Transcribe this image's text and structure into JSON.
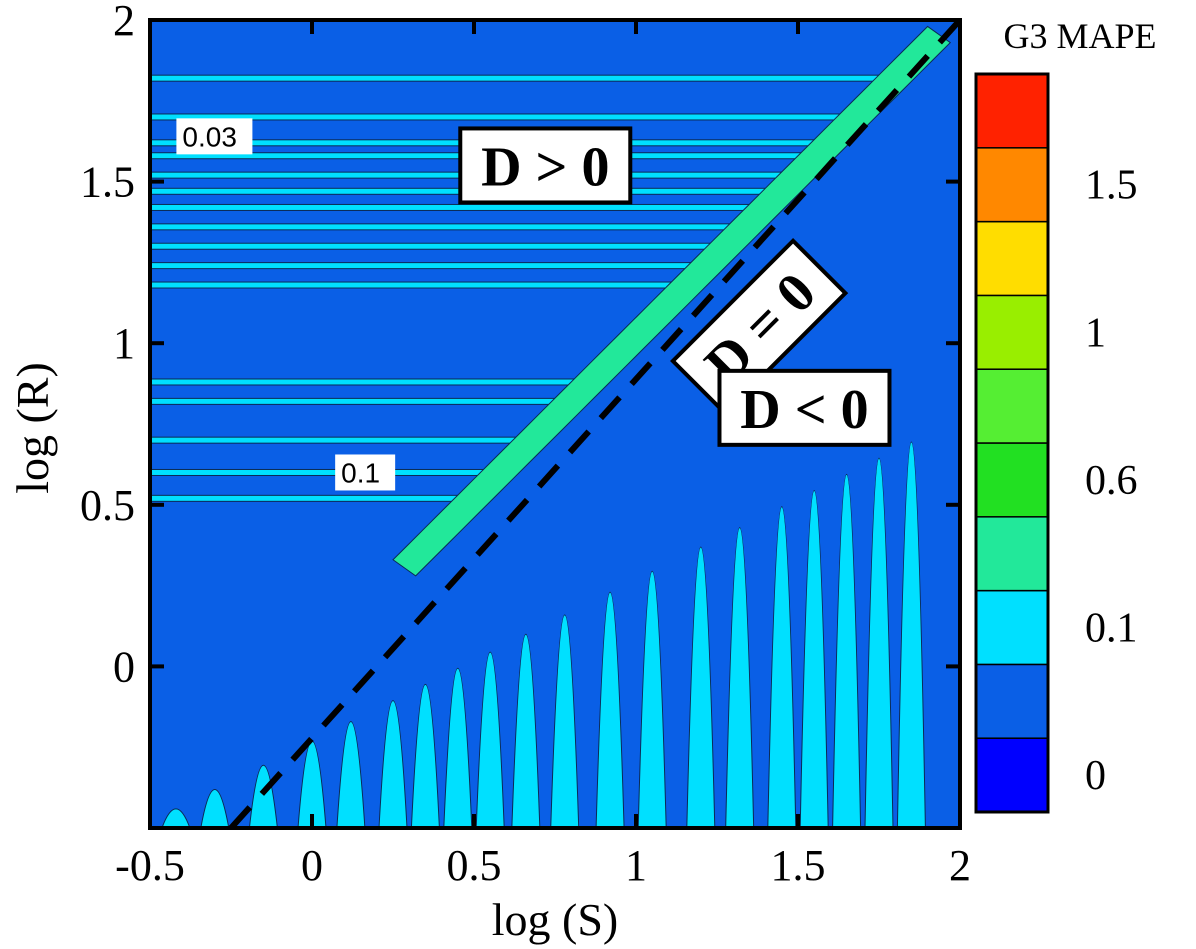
{
  "chart_data": {
    "type": "heatmap",
    "title": "",
    "xlabel": "log (S)",
    "ylabel": "log (R)",
    "xlim": [
      -0.5,
      2
    ],
    "ylim": [
      -0.5,
      2
    ],
    "x_ticks": [
      -0.5,
      0,
      0.5,
      1,
      1.5,
      2
    ],
    "x_tick_labels": [
      "-0.5",
      "0",
      "0.5",
      "1",
      "1.5",
      "2"
    ],
    "y_ticks": [
      0,
      0.5,
      1,
      1.5,
      2
    ],
    "y_tick_labels": [
      "0",
      "0.5",
      "1",
      "1.5",
      "2"
    ],
    "colorbar": {
      "title": "G3 MAPE",
      "levels": [
        0,
        0.03,
        0.1,
        0.3,
        0.6,
        0.8,
        1,
        1.2,
        1.5,
        1.7
      ],
      "colors": [
        "#0000ff",
        "#0a5fe6",
        "#00e0ff",
        "#22e89a",
        "#22e022",
        "#55ee33",
        "#99ee00",
        "#ffdd00",
        "#ff8800",
        "#ff2200"
      ],
      "tick_values": [
        0,
        0.1,
        0.6,
        1,
        1.5
      ],
      "tick_labels": [
        "0",
        "0.1",
        "0.6",
        "1",
        "1.5"
      ]
    },
    "background_color": "#0a5fe6",
    "annotations": [
      {
        "text": "D > 0",
        "x": 0.72,
        "y": 1.55,
        "rotation": 0
      },
      {
        "text": "D = 0",
        "x": 1.38,
        "y": 1.05,
        "rotation": -45
      },
      {
        "text": "D < 0",
        "x": 1.52,
        "y": 0.8,
        "rotation": 0
      }
    ],
    "contour_labels": [
      {
        "text": "0.03",
        "x": -0.4,
        "y": 1.64
      },
      {
        "text": "0.1",
        "x": 0.09,
        "y": 0.6
      }
    ],
    "reference_line": {
      "name": "D = 0",
      "style": "dashed",
      "x": [
        -0.25,
        2
      ],
      "y": [
        -0.5,
        2
      ]
    }
  }
}
